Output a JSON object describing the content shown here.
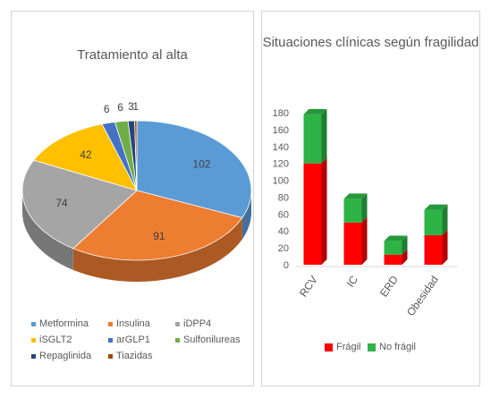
{
  "chart_data": [
    {
      "type": "pie",
      "title": "Tratamiento al alta",
      "categories": [
        "Metformina",
        "Insulina",
        "iDPP4",
        "iSGLT2",
        "arGLP1",
        "Sulfonilureas",
        "Repaglinida",
        "Tiazidas"
      ],
      "values": [
        102,
        91,
        74,
        42,
        6,
        6,
        3,
        1
      ],
      "colors": [
        "#5B9BD5",
        "#ED7D31",
        "#A5A5A5",
        "#FFC000",
        "#4472C4",
        "#70AD47",
        "#264478",
        "#9E480E"
      ],
      "legend_position": "bottom"
    },
    {
      "type": "bar",
      "stacked": true,
      "title": "Situaciones clínicas según fragilidad",
      "categories": [
        "RCV",
        "IC",
        "ERD",
        "Obesidad"
      ],
      "series": [
        {
          "name": "Frágil",
          "values": [
            120,
            50,
            12,
            35
          ],
          "color": "#FF0000"
        },
        {
          "name": "No frágil",
          "values": [
            58,
            28,
            16,
            30
          ],
          "color": "#2EB347"
        }
      ],
      "yticks": [
        "0",
        "20",
        "40",
        "60",
        "80",
        "100",
        "120",
        "140",
        "160",
        "180"
      ],
      "ylim": [
        0,
        180
      ],
      "legend_position": "bottom",
      "grid": false
    }
  ]
}
